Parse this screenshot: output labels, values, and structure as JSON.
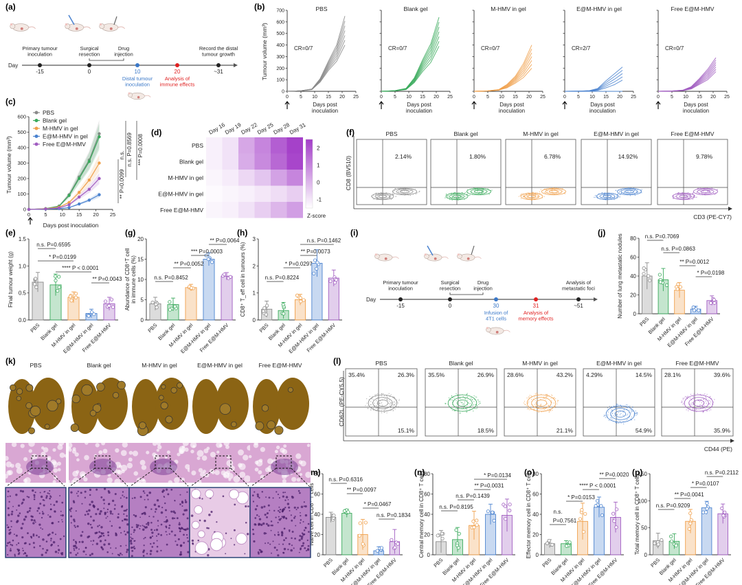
{
  "colors": {
    "PBS": "#8a8a8a",
    "Blank gel": "#3aaa5c",
    "M-HMV in gel": "#f0a04b",
    "E@M-HMV in gel": "#4a82cf",
    "Free E@M-HMV": "#a05cc0",
    "red": "#e02020",
    "blue": "#3a78c8",
    "lung": "#8b6414",
    "he_pink": "#d9a7d3",
    "he_purple": "#7a3e95"
  },
  "groups": [
    "PBS",
    "Blank gel",
    "M-HMV in gel",
    "E@M-HMV in gel",
    "Free E@M-HMV"
  ],
  "panel_a": {
    "letter": "(a)",
    "day_label": "Day",
    "events": [
      {
        "day": "-15",
        "label": "Primary tumour\ninoculation",
        "color": "#222"
      },
      {
        "day": "0",
        "label": "Surgical\nresection",
        "color": "#222"
      },
      {
        "day": "",
        "label": "Drug\ninjection",
        "color": "#222"
      },
      {
        "day": "10",
        "label": "Distal tumour\ninoculation",
        "color": "#3a78c8"
      },
      {
        "day": "20",
        "label": "Analysis of\nimmune effects",
        "color": "#e02020"
      },
      {
        "day": "~31",
        "label": "Record the distal\ntumour growth",
        "color": "#222"
      }
    ]
  },
  "panel_b": {
    "letter": "(b)",
    "ylabel": "Tumour volume (mm³)",
    "xlabel": "Days post\ninoculation",
    "xticks": [
      0,
      5,
      10,
      15,
      20,
      25
    ],
    "yticks": [
      0,
      100,
      200,
      300,
      400,
      500,
      600,
      700
    ],
    "panels": [
      {
        "title": "PBS",
        "cr": "CR=0/7",
        "group": "PBS"
      },
      {
        "title": "Blank gel",
        "cr": "CR=0/7",
        "group": "Blank gel"
      },
      {
        "title": "M-HMV in gel",
        "cr": "CR=0/7",
        "group": "M-HMV in gel"
      },
      {
        "title": "E@M-HMV in gel",
        "cr": "CR=2/7",
        "group": "E@M-HMV in gel"
      },
      {
        "title": "Free E@M-HMV",
        "cr": "CR=0/7",
        "group": "Free E@M-HMV"
      }
    ]
  },
  "panel_c": {
    "letter": "(c)",
    "ylabel": "Tumour volume (mm³)",
    "xlabel": "Days post inoculation",
    "xticks": [
      0,
      5,
      10,
      15,
      20,
      25
    ],
    "yticks": [
      0,
      100,
      200,
      300,
      400,
      500,
      600
    ],
    "pvals": [
      "n.s. P=0.8569",
      "*** P=0.0008",
      "*** P=0.0008",
      "n.s.",
      "** P=0.0099",
      "***"
    ]
  },
  "panel_d": {
    "letter": "(d)",
    "days": [
      "Day 16",
      "Day 19",
      "Day 22",
      "Day 25",
      "Day 28",
      "Day 31"
    ],
    "rows": [
      "PBS",
      "Blank gel",
      "M-HMV in gel",
      "E@M-HMV in gel",
      "Free E@M-HMV"
    ],
    "scale_ticks": [
      "2",
      "1",
      "0",
      "-1"
    ],
    "scale_label": "Z-score"
  },
  "panel_f": {
    "letter": "(f)",
    "ylabel": "CD8 (BV510)",
    "xlabel": "CD3 (PE-CY7)",
    "plots": [
      {
        "title": "PBS",
        "pct": "2.14%"
      },
      {
        "title": "Blank gel",
        "pct": "1.80%"
      },
      {
        "title": "M-HMV in gel",
        "pct": "6.78%"
      },
      {
        "title": "E@M-HMV in gel",
        "pct": "14.92%"
      },
      {
        "title": "Free E@M-HMV",
        "pct": "9.78%"
      }
    ]
  },
  "panel_e": {
    "letter": "(e)",
    "ylabel": "Final tumour weight (g)",
    "yticks": [
      "0.0",
      "0.5",
      "1.0",
      "1.5"
    ],
    "pvals": [
      "n.s. P=0.6595",
      "* P=0.0199",
      "**** P < 0.0001",
      "** P=0.0043"
    ]
  },
  "panel_g": {
    "letter": "(g)",
    "ylabel": "Abundance of CD8⁺T cell\nin immune cells (%)",
    "yticks": [
      "0",
      "5",
      "10",
      "15",
      "20"
    ],
    "pvals": [
      "** P=0.0064",
      "*** P=0.0003",
      "** P=0.0052",
      "n.s. P=0.8452"
    ]
  },
  "panel_h": {
    "letter": "(h)",
    "ylabel": "CD8⁺ T_eff cell in tumours (%)",
    "yticks": [
      "0",
      "1",
      "2",
      "3"
    ],
    "pvals": [
      "n.s. P=0.1462",
      "** P=0.0073",
      "* P=0.0297",
      "n.s. P=0.8224"
    ]
  },
  "panel_i": {
    "letter": "(i)",
    "day_label": "Day",
    "events": [
      {
        "day": "-15",
        "label": "Primary tumour\ninoculation",
        "color": "#222"
      },
      {
        "day": "0",
        "label": "Surgical\nresection",
        "color": "#222"
      },
      {
        "day": "",
        "label": "Drug\ninjection",
        "color": "#222"
      },
      {
        "day": "30",
        "label": "Infusion of\n4T1 cells",
        "color": "#3a78c8"
      },
      {
        "day": "31",
        "label": "Analysis of\nmemory effects",
        "color": "#e02020"
      },
      {
        "day": "~51",
        "label": "Analysis of\nmetastatic foci",
        "color": "#222"
      }
    ]
  },
  "panel_j": {
    "letter": "(j)",
    "ylabel": "Number of lung metastatic nodules",
    "yticks": [
      "0",
      "20",
      "40",
      "60",
      "80"
    ],
    "pvals": [
      "n.s. P=0.7069",
      "n.s. P=0.0863",
      "** P=0.0012",
      "* P=0.0198"
    ]
  },
  "panel_k": {
    "letter": "(k)",
    "titles": [
      "PBS",
      "Blank gel",
      "M-HMV in gel",
      "E@M-HMV in gel",
      "Free E@M-HMV"
    ]
  },
  "panel_l": {
    "letter": "(l)",
    "ylabel": "CD62L (PE-CY5.5)",
    "xlabel": "CD44 (PE)",
    "plots": [
      {
        "title": "PBS",
        "tl": "35.4%",
        "tr": "26.3%",
        "br": "15.1%"
      },
      {
        "title": "Blank gel",
        "tl": "35.5%",
        "tr": "26.9%",
        "br": "18.5%"
      },
      {
        "title": "M-HMV in gel",
        "tl": "28.6%",
        "tr": "43.2%",
        "br": "21.1%"
      },
      {
        "title": "E@M-HMV in gel",
        "tl": "4.29%",
        "tr": "14.5%",
        "br": "54.9%"
      },
      {
        "title": "Free E@M-HMV",
        "tl": "28.1%",
        "tr": "39.6%",
        "br": "35.9%"
      }
    ]
  },
  "panel_m": {
    "letter": "(m)",
    "ylabel": "Naïve cell in CD8⁺ T cells",
    "yticks": [
      "0",
      "20",
      "40",
      "60",
      "80"
    ],
    "pvals": [
      "n.s. P=0.6316",
      "** P=0.0097",
      "* P=0.0467",
      "n.s. P=0.1834"
    ]
  },
  "panel_n": {
    "letter": "(n)",
    "ylabel": "Central memory cell in CD8⁺ T cells",
    "yticks": [
      "0",
      "20",
      "40",
      "60",
      "80"
    ],
    "pvals": [
      "* P=0.0134",
      "** P=0.0031",
      "n.s. P=0.1439",
      "n.s. P=0.8195"
    ]
  },
  "panel_o": {
    "letter": "(o)",
    "ylabel": "Effector memory cell in CD8⁺ T cells",
    "yticks": [
      "0",
      "20",
      "40",
      "60",
      "80"
    ],
    "pvals": [
      "** P=0.0020",
      "**** P < 0.0001",
      "* P=0.0153",
      "n.s.",
      "P=0.7561"
    ]
  },
  "panel_p": {
    "letter": "(p)",
    "ylabel": "Total memory cell in CD8⁺ T cells",
    "yticks": [
      "0",
      "50",
      "100",
      "150"
    ],
    "pvals": [
      "n.s. P=0.2112",
      "* P=0.0107",
      "** P=0.0041",
      "n.s. P=0.9209"
    ]
  },
  "chart_data": [
    {
      "panel": "b",
      "type": "line",
      "x": [
        0,
        5,
        9,
        12,
        15,
        18,
        21
      ],
      "ylim": [
        0,
        700
      ],
      "xlim": [
        0,
        25
      ],
      "series": [
        {
          "group": "PBS",
          "upper": [
            0,
            5,
            20,
            110,
            260,
            400,
            650
          ],
          "lower": [
            0,
            4,
            15,
            80,
            180,
            260,
            400
          ]
        },
        {
          "group": "Blank gel",
          "upper": [
            0,
            6,
            25,
            115,
            270,
            410,
            640
          ],
          "lower": [
            0,
            4,
            15,
            75,
            170,
            250,
            390
          ]
        },
        {
          "group": "M-HMV in gel",
          "upper": [
            0,
            4,
            15,
            60,
            130,
            240,
            400
          ],
          "lower": [
            0,
            3,
            10,
            30,
            70,
            120,
            200
          ]
        },
        {
          "group": "E@M-HMV in gel",
          "upper": [
            0,
            2,
            6,
            25,
            90,
            150,
            210
          ],
          "lower": [
            0,
            0,
            0,
            0,
            0,
            10,
            40
          ]
        },
        {
          "group": "Free E@M-HMV",
          "upper": [
            0,
            3,
            10,
            40,
            110,
            190,
            290
          ],
          "lower": [
            0,
            2,
            6,
            20,
            60,
            100,
            170
          ]
        }
      ]
    },
    {
      "panel": "c",
      "type": "line",
      "x": [
        0,
        5,
        9,
        12,
        15,
        18,
        21
      ],
      "ylim": [
        0,
        600
      ],
      "xlim": [
        0,
        25
      ],
      "series": [
        {
          "group": "PBS",
          "values": [
            0,
            5,
            22,
            95,
            210,
            320,
            490
          ]
        },
        {
          "group": "Blank gel",
          "values": [
            0,
            5,
            20,
            90,
            200,
            310,
            470
          ]
        },
        {
          "group": "M-HMV in gel",
          "values": [
            0,
            4,
            15,
            45,
            110,
            190,
            300
          ]
        },
        {
          "group": "E@M-HMV in gel",
          "values": [
            0,
            2,
            5,
            12,
            35,
            60,
            95
          ]
        },
        {
          "group": "Free E@M-HMV",
          "values": [
            0,
            3,
            10,
            30,
            80,
            130,
            200
          ]
        }
      ]
    },
    {
      "panel": "d",
      "type": "heatmap",
      "x": [
        "Day 16",
        "Day 19",
        "Day 22",
        "Day 25",
        "Day 28",
        "Day 31"
      ],
      "y": [
        "PBS",
        "Blank gel",
        "M-HMV in gel",
        "E@M-HMV in gel",
        "Free E@M-HMV"
      ],
      "values": [
        [
          -1.2,
          -0.9,
          0.3,
          1.0,
          1.8,
          2.4
        ],
        [
          -1.2,
          -0.9,
          0.2,
          0.9,
          1.6,
          2.3
        ],
        [
          -1.3,
          -1.1,
          -0.7,
          -0.3,
          0.4,
          1.0
        ],
        [
          -1.4,
          -1.3,
          -1.2,
          -1.0,
          -0.8,
          -0.5
        ],
        [
          -1.3,
          -1.2,
          -0.9,
          -0.5,
          0.0,
          0.5
        ]
      ],
      "zlim": [
        -1.5,
        2.5
      ]
    },
    {
      "panel": "e",
      "type": "bar",
      "categories": [
        "PBS",
        "Blank gel",
        "M-HMV in gel",
        "E@M-HMV in gel",
        "Free E@M-HMV"
      ],
      "values": [
        0.7,
        0.65,
        0.42,
        0.12,
        0.3
      ],
      "errors": [
        0.18,
        0.2,
        0.1,
        0.08,
        0.12
      ],
      "ylim": [
        0,
        1.5
      ]
    },
    {
      "panel": "g",
      "type": "bar",
      "categories": [
        "PBS",
        "Blank gel",
        "M-HMV in gel",
        "E@M-HMV in gel",
        "Free E@M-HMV"
      ],
      "values": [
        4,
        3.8,
        8,
        15,
        10.8
      ],
      "errors": [
        1.6,
        1.6,
        0.8,
        1.6,
        0.9
      ],
      "ylim": [
        0,
        20
      ]
    },
    {
      "panel": "h",
      "type": "bar",
      "categories": [
        "PBS",
        "Blank gel",
        "M-HMV in gel",
        "E@M-HMV in gel",
        "Free E@M-HMV"
      ],
      "values": [
        0.4,
        0.35,
        0.75,
        2.1,
        1.55
      ],
      "errors": [
        0.3,
        0.3,
        0.2,
        0.5,
        0.3
      ],
      "ylim": [
        0,
        3
      ]
    },
    {
      "panel": "j",
      "type": "bar",
      "categories": [
        "PBS",
        "Blank gel",
        "M-HMV in gel",
        "E@M-HMV in gel",
        "Free E@M-HMV"
      ],
      "values": [
        40,
        36,
        25,
        5,
        14
      ],
      "errors": [
        14,
        12,
        8,
        3,
        5
      ],
      "ylim": [
        0,
        80
      ]
    },
    {
      "panel": "m",
      "type": "bar",
      "categories": [
        "PBS",
        "Blank gel",
        "M-HMV in gel",
        "E@M-HMV in gel",
        "Free E@M-HMV"
      ],
      "values": [
        37,
        41,
        20,
        4,
        13
      ],
      "errors": [
        5,
        4,
        15,
        4,
        12
      ],
      "ylim": [
        0,
        80
      ]
    },
    {
      "panel": "n",
      "type": "bar",
      "categories": [
        "PBS",
        "Blank gel",
        "M-HMV in gel",
        "E@M-HMV in gel",
        "Free E@M-HMV"
      ],
      "values": [
        13,
        15,
        29,
        40,
        39
      ],
      "errors": [
        11,
        12,
        14,
        10,
        16
      ],
      "ylim": [
        0,
        80
      ]
    },
    {
      "panel": "o",
      "type": "bar",
      "categories": [
        "PBS",
        "Blank gel",
        "M-HMV in gel",
        "E@M-HMV in gel",
        "Free E@M-HMV"
      ],
      "values": [
        11,
        11,
        33,
        47,
        37
      ],
      "errors": [
        4,
        3,
        18,
        10,
        15
      ],
      "ylim": [
        0,
        80
      ]
    },
    {
      "panel": "p",
      "type": "bar",
      "categories": [
        "PBS",
        "Blank gel",
        "M-HMV in gel",
        "E@M-HMV in gel",
        "Free E@M-HMV"
      ],
      "values": [
        26,
        25,
        62,
        87,
        76
      ],
      "errors": [
        14,
        14,
        22,
        12,
        18
      ],
      "ylim": [
        0,
        150
      ]
    }
  ]
}
